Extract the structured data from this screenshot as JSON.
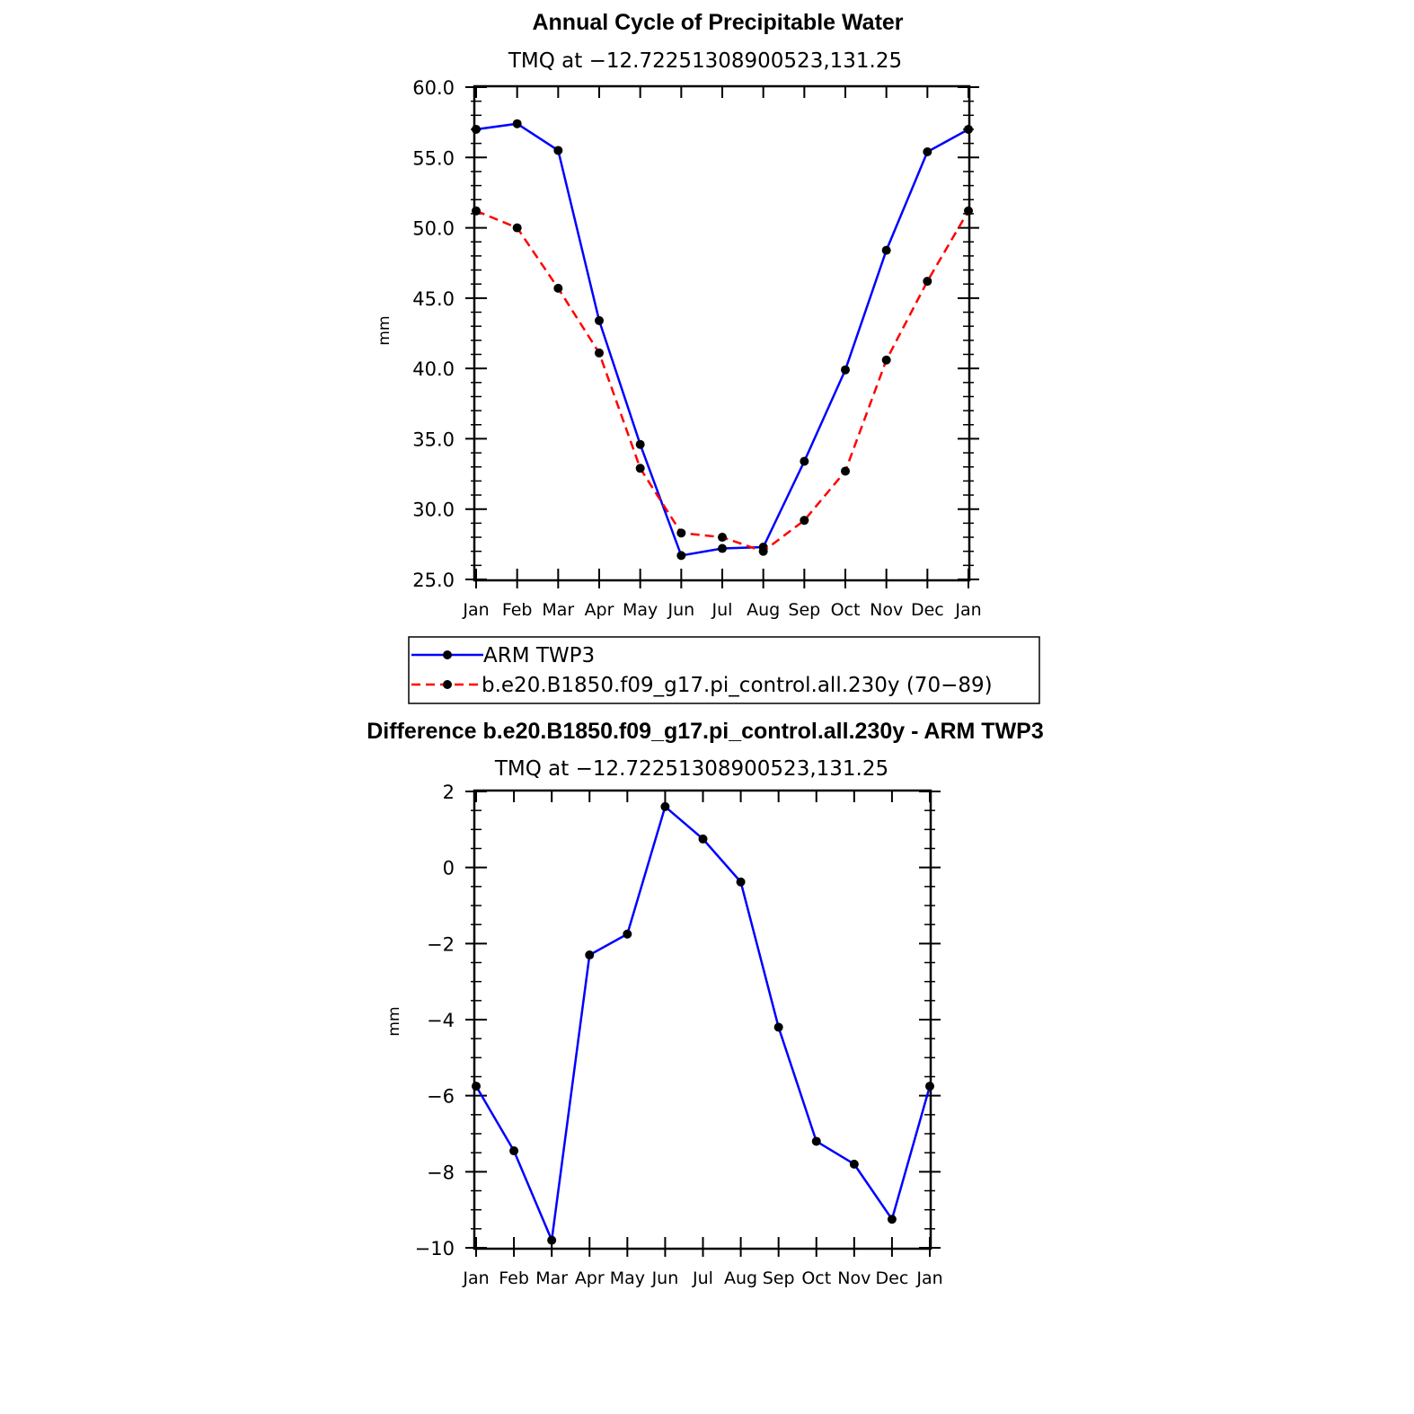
{
  "chart_data": [
    {
      "type": "line",
      "title": "Annual Cycle of Precipitable Water",
      "subtitle": "TMQ at −12.72251308900523,131.25",
      "ylabel": "mm",
      "xlabel": "",
      "categories": [
        "Jan",
        "Feb",
        "Mar",
        "Apr",
        "May",
        "Jun",
        "Jul",
        "Aug",
        "Sep",
        "Oct",
        "Nov",
        "Dec",
        "Jan"
      ],
      "ylim": [
        25.0,
        60.0
      ],
      "yticks": [
        "25.0",
        "30.0",
        "35.0",
        "40.0",
        "45.0",
        "50.0",
        "55.0",
        "60.0"
      ],
      "ytick_values": [
        25,
        30,
        35,
        40,
        45,
        50,
        55,
        60
      ],
      "legend_position": "bottom",
      "series": [
        {
          "name": "ARM TWP3",
          "color": "#0000ff",
          "dash": "solid",
          "values": [
            57.0,
            57.4,
            55.5,
            43.4,
            34.6,
            26.7,
            27.2,
            27.3,
            33.4,
            39.9,
            48.4,
            55.4,
            57.0
          ]
        },
        {
          "name": "b.e20.B1850.f09_g17.pi_control.all.230y (70−89)",
          "color": "#ff0000",
          "dash": "dashed",
          "values": [
            51.2,
            50.0,
            45.7,
            41.1,
            32.9,
            28.3,
            28.0,
            27.0,
            29.2,
            32.7,
            40.6,
            46.2,
            51.2
          ]
        }
      ]
    },
    {
      "type": "line",
      "title": "Difference b.e20.B1850.f09_g17.pi_control.all.230y - ARM TWP3",
      "subtitle": "TMQ at −12.72251308900523,131.25",
      "ylabel": "mm",
      "xlabel": "",
      "categories": [
        "Jan",
        "Feb",
        "Mar",
        "Apr",
        "May",
        "Jun",
        "Jul",
        "Aug",
        "Sep",
        "Oct",
        "Nov",
        "Dec",
        "Jan"
      ],
      "ylim": [
        -10,
        2
      ],
      "yticks": [
        "−10",
        "−8",
        "−6",
        "−4",
        "−2",
        "0",
        "2"
      ],
      "ytick_values": [
        -10,
        -8,
        -6,
        -4,
        -2,
        0,
        2
      ],
      "series": [
        {
          "name": "",
          "color": "#0000ff",
          "dash": "solid",
          "values": [
            -5.75,
            -7.45,
            -9.8,
            -2.3,
            -1.75,
            1.6,
            0.75,
            -0.38,
            -4.2,
            -7.2,
            -7.8,
            -9.25,
            -5.75
          ]
        }
      ]
    }
  ]
}
